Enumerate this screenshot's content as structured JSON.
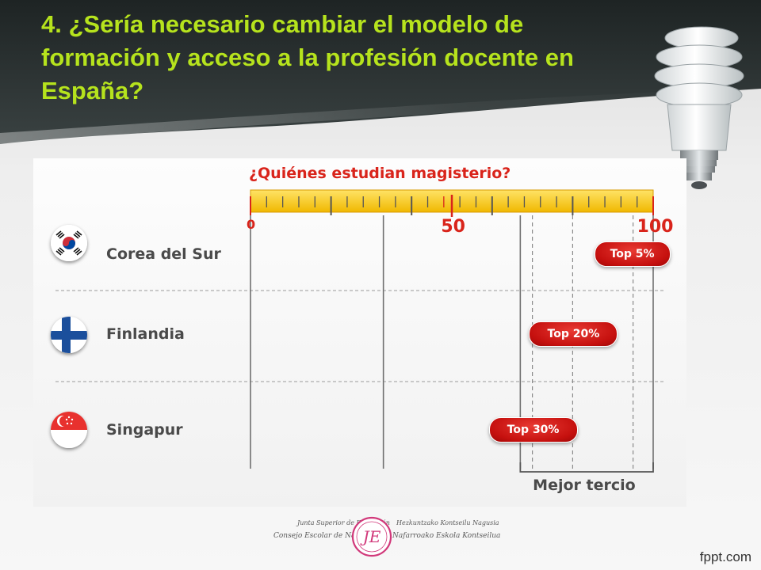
{
  "slide": {
    "title": "4. ¿Sería necesario cambiar el modelo de formación y acceso a la profesión docente en España?"
  },
  "chart_data": {
    "type": "bar",
    "title": "¿Quiénes estudian magisterio?",
    "xlim": [
      0,
      100
    ],
    "tick_labels": [
      "0",
      "50",
      "100"
    ],
    "categories": [
      "Corea del Sur",
      "Finlandia",
      "Singapur"
    ],
    "values": [
      95,
      80,
      70
    ],
    "value_labels": [
      "Top 5%",
      "Top 20%",
      "Top 30%"
    ],
    "highlight_range": [
      67,
      100
    ],
    "highlight_label": "Mejor tercio",
    "colors": {
      "accent": "#d9241b",
      "ruler": "#f6c500",
      "pill": "#c5100e"
    }
  },
  "flags": [
    "south-korea-flag-icon",
    "finland-flag-icon",
    "singapore-flag-icon"
  ],
  "footer": {
    "logo_left_line1": "Junta Superior de Educación",
    "logo_left_line2": "Consejo Escolar de Navarra",
    "logo_right_line1": "Hezkuntzako Kontseilu Nagusia",
    "logo_right_line2": "Nafarroako Eskola Kontseilua",
    "monogram": "JE"
  },
  "watermark": "fppt.com"
}
